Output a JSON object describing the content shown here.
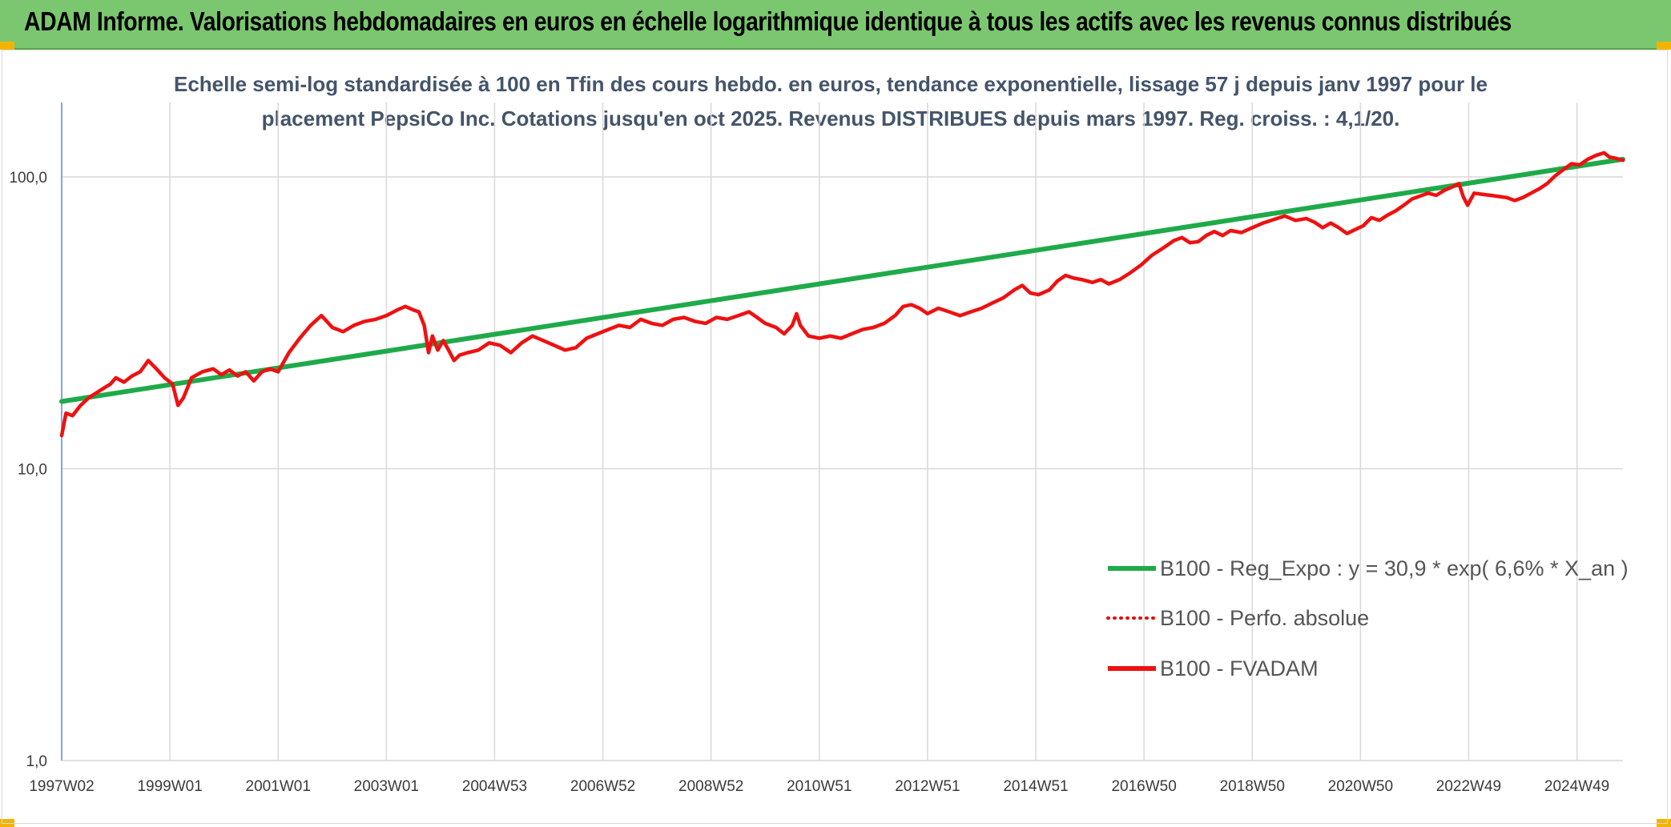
{
  "header": {
    "title": "ADAM Informe. Valorisations hebdomadaires en euros en échelle logarithmique identique à tous les actifs avec les revenus connus distribués"
  },
  "colors": {
    "banner": "#7bc76f",
    "trend": "#1faa4a",
    "fvadam": "#ee1111",
    "perfo": "#e01010",
    "subtitle": "#44546a"
  },
  "chart_data": {
    "type": "line",
    "title_lines": [
      "Echelle semi-log standardisée à 100 en Tfin des cours hebdo. en euros, tendance exponentielle, lissage 57 j depuis janv 1997 pour le",
      "placement PepsiCo Inc. Cotations jusqu'en oct 2025. Revenus DISTRIBUES depuis mars 1997. Reg. croiss. : 4,1/20."
    ],
    "y_scale": "log",
    "ylim": [
      1,
      180
    ],
    "y_ticks": [
      {
        "value": 1,
        "label": "1,0"
      },
      {
        "value": 10,
        "label": "10,0"
      },
      {
        "value": 100,
        "label": "100,0"
      }
    ],
    "xlim": [
      1997.0,
      2025.85
    ],
    "x_ticks": [
      {
        "value": 1997.0,
        "label": "1997W02"
      },
      {
        "value": 1999.0,
        "label": "1999W01"
      },
      {
        "value": 2001.0,
        "label": "2001W01"
      },
      {
        "value": 2003.0,
        "label": "2003W01"
      },
      {
        "value": 2005.0,
        "label": "2004W53"
      },
      {
        "value": 2007.0,
        "label": "2006W52"
      },
      {
        "value": 2009.0,
        "label": "2008W52"
      },
      {
        "value": 2011.0,
        "label": "2010W51"
      },
      {
        "value": 2013.0,
        "label": "2012W51"
      },
      {
        "value": 2015.0,
        "label": "2014W51"
      },
      {
        "value": 2017.0,
        "label": "2016W50"
      },
      {
        "value": 2019.0,
        "label": "2018W50"
      },
      {
        "value": 2021.0,
        "label": "2020W50"
      },
      {
        "value": 2023.0,
        "label": "2022W49"
      },
      {
        "value": 2025.0,
        "label": "2024W49"
      }
    ],
    "grid": "vertical-and-horizontal",
    "legend_position": "right-center",
    "series": [
      {
        "name": "B100 - Reg_Expo : y = 30,9 * exp( 6,6% *  X_an )",
        "style": "solid",
        "color": "#1faa4a",
        "points": [
          [
            1997.0,
            17.0
          ],
          [
            2025.85,
            115.0
          ]
        ]
      },
      {
        "name": "B100 - Perfo. absolue",
        "style": "dotted",
        "color": "#e01010",
        "points": []
      },
      {
        "name": "B100 - FVADAM",
        "style": "solid",
        "color": "#ee1111",
        "points": [
          [
            1997.0,
            13.0
          ],
          [
            1997.08,
            15.5
          ],
          [
            1997.2,
            15.2
          ],
          [
            1997.35,
            16.5
          ],
          [
            1997.5,
            17.5
          ],
          [
            1997.7,
            18.5
          ],
          [
            1997.9,
            19.5
          ],
          [
            1998.0,
            20.5
          ],
          [
            1998.15,
            19.8
          ],
          [
            1998.3,
            20.8
          ],
          [
            1998.45,
            21.5
          ],
          [
            1998.6,
            23.5
          ],
          [
            1998.75,
            22.0
          ],
          [
            1998.9,
            20.5
          ],
          [
            1999.05,
            19.5
          ],
          [
            1999.15,
            16.5
          ],
          [
            1999.25,
            17.5
          ],
          [
            1999.4,
            20.5
          ],
          [
            1999.6,
            21.5
          ],
          [
            1999.8,
            22.0
          ],
          [
            1999.95,
            21.0
          ],
          [
            2000.1,
            21.8
          ],
          [
            2000.25,
            20.8
          ],
          [
            2000.4,
            21.5
          ],
          [
            2000.55,
            20.0
          ],
          [
            2000.7,
            21.5
          ],
          [
            2000.85,
            22.0
          ],
          [
            2001.0,
            21.5
          ],
          [
            2001.2,
            25.0
          ],
          [
            2001.4,
            28.0
          ],
          [
            2001.6,
            31.0
          ],
          [
            2001.8,
            33.5
          ],
          [
            2002.0,
            30.5
          ],
          [
            2002.2,
            29.5
          ],
          [
            2002.4,
            31.0
          ],
          [
            2002.6,
            32.0
          ],
          [
            2002.8,
            32.5
          ],
          [
            2003.0,
            33.5
          ],
          [
            2003.2,
            35.0
          ],
          [
            2003.35,
            36.0
          ],
          [
            2003.5,
            35.0
          ],
          [
            2003.6,
            34.5
          ],
          [
            2003.7,
            31.0
          ],
          [
            2003.78,
            25.0
          ],
          [
            2003.85,
            28.5
          ],
          [
            2003.95,
            25.5
          ],
          [
            2004.05,
            27.5
          ],
          [
            2004.15,
            25.5
          ],
          [
            2004.25,
            23.5
          ],
          [
            2004.35,
            24.5
          ],
          [
            2004.5,
            25.0
          ],
          [
            2004.7,
            25.5
          ],
          [
            2004.9,
            27.0
          ],
          [
            2005.1,
            26.5
          ],
          [
            2005.3,
            25.0
          ],
          [
            2005.5,
            27.0
          ],
          [
            2005.7,
            28.5
          ],
          [
            2005.9,
            27.5
          ],
          [
            2006.1,
            26.5
          ],
          [
            2006.3,
            25.5
          ],
          [
            2006.5,
            26.0
          ],
          [
            2006.7,
            28.0
          ],
          [
            2006.9,
            29.0
          ],
          [
            2007.1,
            30.0
          ],
          [
            2007.3,
            31.0
          ],
          [
            2007.5,
            30.5
          ],
          [
            2007.7,
            32.5
          ],
          [
            2007.9,
            31.5
          ],
          [
            2008.1,
            31.0
          ],
          [
            2008.3,
            32.5
          ],
          [
            2008.5,
            33.0
          ],
          [
            2008.7,
            32.0
          ],
          [
            2008.9,
            31.5
          ],
          [
            2009.1,
            33.0
          ],
          [
            2009.3,
            32.5
          ],
          [
            2009.5,
            33.5
          ],
          [
            2009.7,
            34.5
          ],
          [
            2009.85,
            33.0
          ],
          [
            2010.0,
            31.5
          ],
          [
            2010.2,
            30.5
          ],
          [
            2010.35,
            29.0
          ],
          [
            2010.5,
            31.0
          ],
          [
            2010.58,
            34.0
          ],
          [
            2010.65,
            31.0
          ],
          [
            2010.8,
            28.5
          ],
          [
            2011.0,
            28.0
          ],
          [
            2011.2,
            28.5
          ],
          [
            2011.4,
            28.0
          ],
          [
            2011.6,
            29.0
          ],
          [
            2011.8,
            30.0
          ],
          [
            2012.0,
            30.5
          ],
          [
            2012.2,
            31.5
          ],
          [
            2012.4,
            33.5
          ],
          [
            2012.55,
            36.0
          ],
          [
            2012.7,
            36.5
          ],
          [
            2012.85,
            35.5
          ],
          [
            2013.0,
            34.0
          ],
          [
            2013.2,
            35.5
          ],
          [
            2013.4,
            34.5
          ],
          [
            2013.6,
            33.5
          ],
          [
            2013.8,
            34.5
          ],
          [
            2014.0,
            35.5
          ],
          [
            2014.2,
            37.0
          ],
          [
            2014.4,
            38.5
          ],
          [
            2014.6,
            41.0
          ],
          [
            2014.75,
            42.5
          ],
          [
            2014.9,
            40.0
          ],
          [
            2015.05,
            39.5
          ],
          [
            2015.25,
            41.0
          ],
          [
            2015.4,
            44.0
          ],
          [
            2015.55,
            46.0
          ],
          [
            2015.7,
            45.0
          ],
          [
            2015.85,
            44.5
          ],
          [
            2016.05,
            43.5
          ],
          [
            2016.2,
            44.5
          ],
          [
            2016.35,
            43.0
          ],
          [
            2016.55,
            44.5
          ],
          [
            2016.75,
            47.0
          ],
          [
            2016.95,
            50.0
          ],
          [
            2017.15,
            54.0
          ],
          [
            2017.35,
            57.0
          ],
          [
            2017.55,
            60.5
          ],
          [
            2017.7,
            62.0
          ],
          [
            2017.85,
            59.5
          ],
          [
            2018.0,
            60.0
          ],
          [
            2018.15,
            63.0
          ],
          [
            2018.3,
            65.0
          ],
          [
            2018.45,
            63.0
          ],
          [
            2018.6,
            65.5
          ],
          [
            2018.8,
            64.5
          ],
          [
            2019.0,
            67.0
          ],
          [
            2019.2,
            69.5
          ],
          [
            2019.4,
            71.5
          ],
          [
            2019.6,
            73.5
          ],
          [
            2019.8,
            71.0
          ],
          [
            2020.0,
            72.0
          ],
          [
            2020.15,
            70.0
          ],
          [
            2020.3,
            67.0
          ],
          [
            2020.45,
            69.5
          ],
          [
            2020.6,
            67.0
          ],
          [
            2020.75,
            64.0
          ],
          [
            2020.9,
            66.0
          ],
          [
            2021.05,
            68.0
          ],
          [
            2021.2,
            72.5
          ],
          [
            2021.35,
            71.0
          ],
          [
            2021.5,
            74.0
          ],
          [
            2021.65,
            76.5
          ],
          [
            2021.8,
            80.0
          ],
          [
            2021.95,
            84.0
          ],
          [
            2022.1,
            86.0
          ],
          [
            2022.25,
            88.0
          ],
          [
            2022.4,
            86.5
          ],
          [
            2022.55,
            90.0
          ],
          [
            2022.7,
            92.5
          ],
          [
            2022.82,
            95.0
          ],
          [
            2022.9,
            85.5
          ],
          [
            2022.98,
            80.0
          ],
          [
            2023.1,
            88.0
          ],
          [
            2023.3,
            87.0
          ],
          [
            2023.5,
            86.0
          ],
          [
            2023.7,
            85.0
          ],
          [
            2023.85,
            83.0
          ],
          [
            2024.0,
            85.0
          ],
          [
            2024.15,
            88.0
          ],
          [
            2024.3,
            91.0
          ],
          [
            2024.45,
            95.0
          ],
          [
            2024.6,
            101.0
          ],
          [
            2024.75,
            106.0
          ],
          [
            2024.9,
            111.0
          ],
          [
            2025.05,
            110.0
          ],
          [
            2025.2,
            115.0
          ],
          [
            2025.35,
            118.5
          ],
          [
            2025.5,
            121.0
          ],
          [
            2025.6,
            117.0
          ],
          [
            2025.7,
            116.0
          ],
          [
            2025.85,
            114.0
          ]
        ]
      }
    ]
  }
}
